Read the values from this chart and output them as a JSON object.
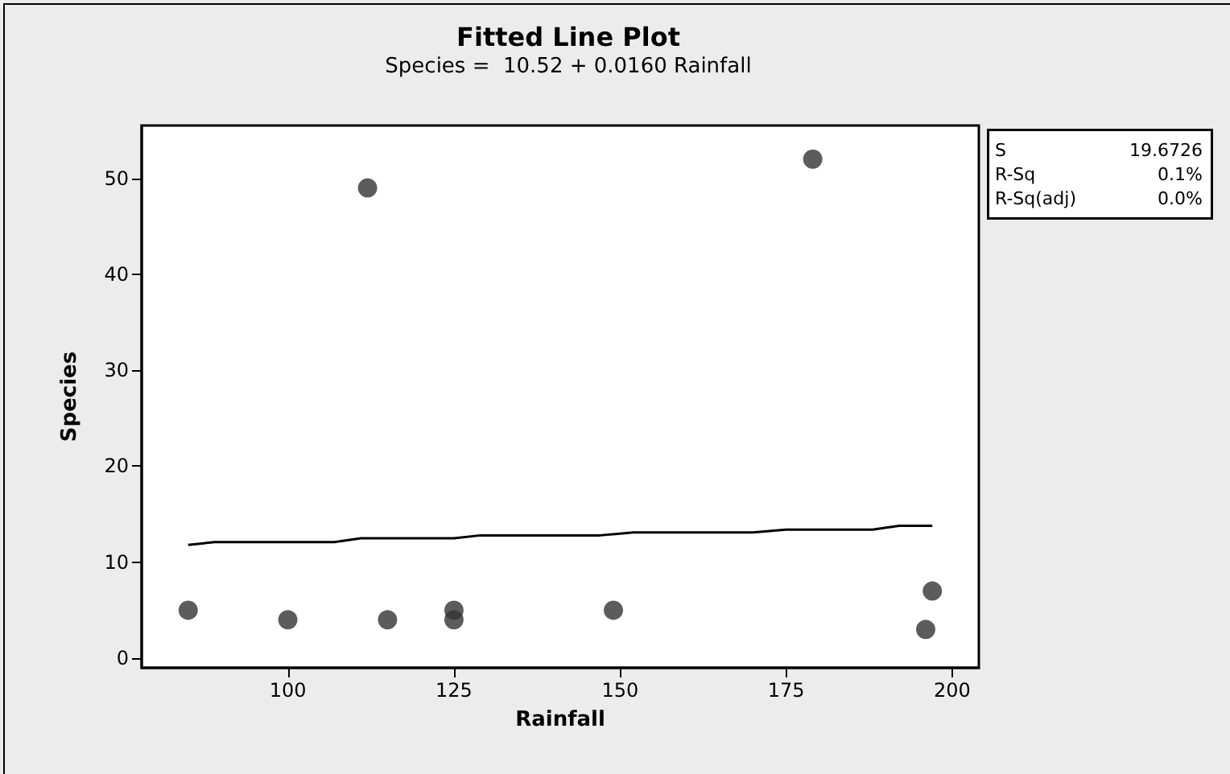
{
  "chart_data": {
    "type": "scatter",
    "title": "Fitted Line Plot",
    "subtitle": "Species =  10.52 + 0.0160 Rainfall",
    "xlabel": "Rainfall",
    "ylabel": "Species",
    "annotations": [
      "S",
      "19.6726",
      "R-Sq",
      "0.1%",
      "R-Sq(adj)",
      "0.0%"
    ],
    "xlim": [
      78,
      204
    ],
    "xticks": [
      100,
      125,
      150,
      175,
      200
    ],
    "ylim": [
      -1,
      55.5
    ],
    "yticks": [
      0,
      10,
      20,
      30,
      40,
      50
    ],
    "grid": false,
    "marker": "circle",
    "series": [
      {
        "color": "#333333",
        "x": [
          85,
          100,
          112,
          115,
          125,
          125,
          149,
          179,
          196,
          197
        ],
        "values": [
          5,
          4,
          49,
          4,
          5,
          4,
          5,
          52,
          3,
          7
        ]
      },
      {
        "type": "line",
        "color": "#000000",
        "marker": "none",
        "line_style": "solid",
        "x": [
          85,
          89,
          107,
          111,
          125,
          129,
          147,
          152,
          170,
          175,
          188,
          192,
          197
        ],
        "values": [
          11.8,
          12.1,
          12.1,
          12.5,
          12.5,
          12.8,
          12.8,
          13.1,
          13.1,
          13.4,
          13.4,
          13.8,
          13.8
        ]
      }
    ]
  }
}
